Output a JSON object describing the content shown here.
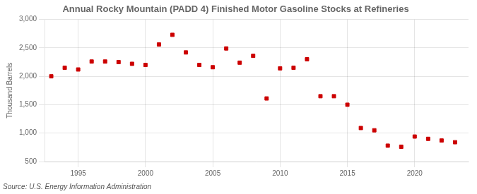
{
  "chart_data": {
    "type": "scatter",
    "title": "Annual Rocky Mountain (PADD 4) Finished Motor Gasoline Stocks at Refineries",
    "ylabel": "Thousand Barrels",
    "annotations": [
      "Source: U.S. Energy Information Administration"
    ],
    "x": [
      1993,
      1994,
      1995,
      1996,
      1997,
      1998,
      1999,
      2000,
      2001,
      2002,
      2003,
      2004,
      2005,
      2006,
      2007,
      2008,
      2009,
      2010,
      2011,
      2012,
      2013,
      2014,
      2015,
      2016,
      2017,
      2018,
      2019,
      2020,
      2021,
      2022,
      2023
    ],
    "values": [
      2000,
      2150,
      2120,
      2260,
      2260,
      2250,
      2220,
      2200,
      2560,
      2730,
      2420,
      2200,
      2160,
      2490,
      2240,
      2360,
      1610,
      2140,
      2150,
      2300,
      1650,
      1650,
      1500,
      1090,
      1050,
      780,
      760,
      940,
      900,
      870,
      840
    ],
    "color": "#cc0000",
    "marker": "square",
    "xlim": [
      1992.5,
      2024
    ],
    "xticks": [
      1995,
      2000,
      2005,
      2010,
      2015,
      2020
    ],
    "ylim": [
      500,
      3000
    ],
    "yticks": [
      500,
      {
        "value": 1000,
        "label": "1,000"
      },
      {
        "value": 1500,
        "label": "1,500"
      },
      {
        "value": 2000,
        "label": "2,000"
      },
      {
        "value": 2500,
        "label": "2,500"
      },
      {
        "value": 3000,
        "label": "3,000"
      }
    ],
    "grid": true
  }
}
